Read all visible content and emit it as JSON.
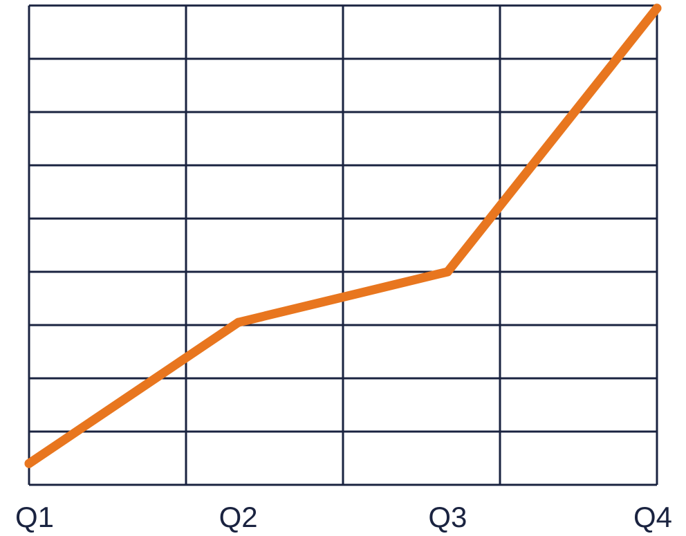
{
  "chart_data": {
    "type": "line",
    "title": "",
    "xlabel": "",
    "ylabel": "",
    "categories": [
      "Q1",
      "Q2",
      "Q3",
      "Q4"
    ],
    "x": [
      "Q1",
      "Q2",
      "Q3",
      "Q4"
    ],
    "series": [
      {
        "values": [
          0.4,
          3.05,
          4.0,
          8.95
        ]
      }
    ],
    "ylim": [
      0,
      9
    ],
    "grid": true,
    "legend": "none",
    "colors": {
      "line": "#E8761F",
      "grid": "#1A2340",
      "axis_text": "#1A2340"
    }
  }
}
